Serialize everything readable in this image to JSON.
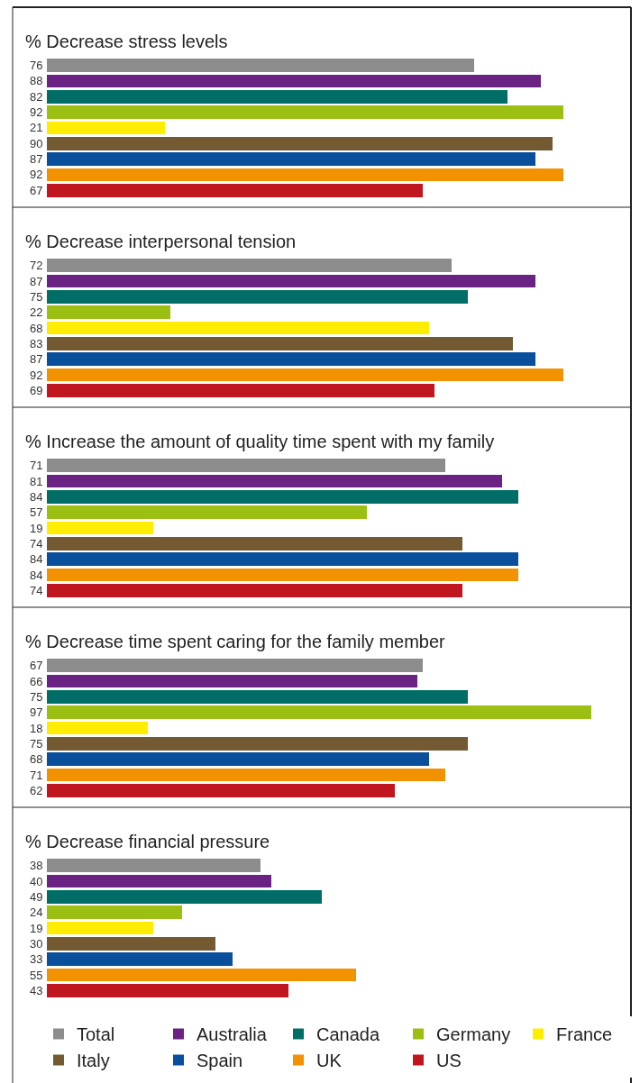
{
  "chart_data": [
    {
      "type": "bar",
      "orientation": "horizontal",
      "title": "% Decrease stress levels",
      "categories": [
        null
      ],
      "xlim": [
        0,
        104
      ],
      "tick_labels": false,
      "data_labels": true,
      "legend": "bottom",
      "series": [
        {
          "name": "Total",
          "color": "#8c8c8c",
          "values": [
            76
          ]
        },
        {
          "name": "Australia",
          "color": "#6a2383",
          "values": [
            88
          ]
        },
        {
          "name": "Canada",
          "color": "#006e66",
          "values": [
            82
          ]
        },
        {
          "name": "Germany",
          "color": "#9bbf12",
          "values": [
            92
          ]
        },
        {
          "name": "France",
          "color": "#ffed00",
          "values": [
            21
          ]
        },
        {
          "name": "Italy",
          "color": "#735a32",
          "values": [
            90
          ]
        },
        {
          "name": "Spain",
          "color": "#0a4f9c",
          "values": [
            87
          ]
        },
        {
          "name": "UK",
          "color": "#f39200",
          "values": [
            92
          ]
        },
        {
          "name": "US",
          "color": "#c0161f",
          "values": [
            67
          ]
        }
      ]
    },
    {
      "type": "bar",
      "orientation": "horizontal",
      "title": "% Decrease interpersonal tension",
      "categories": [
        null
      ],
      "xlim": [
        0,
        104
      ],
      "tick_labels": false,
      "data_labels": true,
      "series": [
        {
          "color": "#8c8c8c",
          "values": [
            72
          ]
        },
        {
          "color": "#6a2383",
          "values": [
            87
          ]
        },
        {
          "color": "#006e66",
          "values": [
            75
          ]
        },
        {
          "color": "#9bbf12",
          "values": [
            22
          ]
        },
        {
          "color": "#ffed00",
          "values": [
            68
          ]
        },
        {
          "color": "#735a32",
          "values": [
            83
          ]
        },
        {
          "color": "#0a4f9c",
          "values": [
            87
          ]
        },
        {
          "color": "#f39200",
          "values": [
            92
          ]
        },
        {
          "color": "#c0161f",
          "values": [
            69
          ]
        }
      ]
    },
    {
      "type": "bar",
      "orientation": "horizontal",
      "title": "% Increase the amount of quality time spent with my family",
      "categories": [
        null
      ],
      "xlim": [
        0,
        104
      ],
      "tick_labels": false,
      "data_labels": true,
      "series": [
        {
          "color": "#8c8c8c",
          "values": [
            71
          ]
        },
        {
          "color": "#6a2383",
          "values": [
            81
          ]
        },
        {
          "color": "#006e66",
          "values": [
            84
          ]
        },
        {
          "color": "#9bbf12",
          "values": [
            57
          ]
        },
        {
          "color": "#ffed00",
          "values": [
            19
          ]
        },
        {
          "color": "#735a32",
          "values": [
            74
          ]
        },
        {
          "color": "#0a4f9c",
          "values": [
            84
          ]
        },
        {
          "color": "#f39200",
          "values": [
            84
          ]
        },
        {
          "color": "#c0161f",
          "values": [
            74
          ]
        }
      ]
    },
    {
      "type": "bar",
      "orientation": "horizontal",
      "title": "% Decrease time spent caring for the family member",
      "categories": [
        null
      ],
      "xlim": [
        0,
        104
      ],
      "tick_labels": false,
      "data_labels": true,
      "series": [
        {
          "color": "#8c8c8c",
          "values": [
            67
          ]
        },
        {
          "color": "#6a2383",
          "values": [
            66
          ]
        },
        {
          "color": "#006e66",
          "values": [
            75
          ]
        },
        {
          "color": "#9bbf12",
          "values": [
            97
          ]
        },
        {
          "color": "#ffed00",
          "values": [
            18
          ]
        },
        {
          "color": "#735a32",
          "values": [
            75
          ]
        },
        {
          "color": "#0a4f9c",
          "values": [
            68
          ]
        },
        {
          "color": "#f39200",
          "values": [
            71
          ]
        },
        {
          "color": "#c0161f",
          "values": [
            62
          ]
        }
      ]
    },
    {
      "type": "bar",
      "orientation": "horizontal",
      "title": "% Decrease financial pressure",
      "categories": [
        null
      ],
      "xlim": [
        0,
        104
      ],
      "tick_labels": false,
      "data_labels": true,
      "series": [
        {
          "color": "#8c8c8c",
          "values": [
            38
          ]
        },
        {
          "color": "#6a2383",
          "values": [
            40
          ]
        },
        {
          "color": "#006e66",
          "values": [
            49
          ]
        },
        {
          "color": "#9bbf12",
          "values": [
            24
          ]
        },
        {
          "color": "#ffed00",
          "values": [
            19
          ]
        },
        {
          "color": "#735a32",
          "values": [
            30
          ]
        },
        {
          "color": "#0a4f9c",
          "values": [
            33
          ]
        },
        {
          "color": "#f39200",
          "values": [
            55
          ]
        },
        {
          "color": "#c0161f",
          "values": [
            43
          ]
        }
      ]
    }
  ]
}
